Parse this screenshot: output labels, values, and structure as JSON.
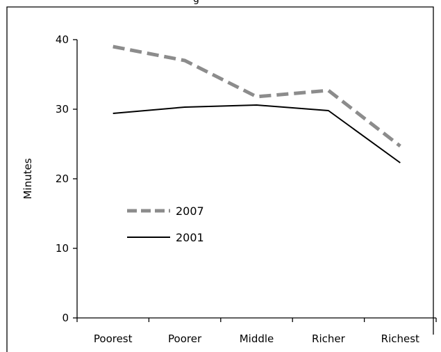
{
  "chart_data": {
    "type": "line",
    "title_fragment": "g",
    "categories": [
      "Poorest",
      "Poorer",
      "Middle",
      "Richer",
      "Richest"
    ],
    "ylabel": "Minutes",
    "ylim": [
      0,
      40
    ],
    "yticks": [
      0,
      10,
      20,
      30,
      40
    ],
    "grid": false,
    "legend_position": "center-left",
    "series": [
      {
        "name": "2007",
        "values": [
          39.0,
          37.0,
          31.8,
          32.7,
          24.7
        ],
        "color": "#8c8c8c",
        "style": "dashed"
      },
      {
        "name": "2001",
        "values": [
          29.4,
          30.3,
          30.6,
          29.8,
          22.3
        ],
        "color": "#000000",
        "style": "solid"
      }
    ]
  }
}
